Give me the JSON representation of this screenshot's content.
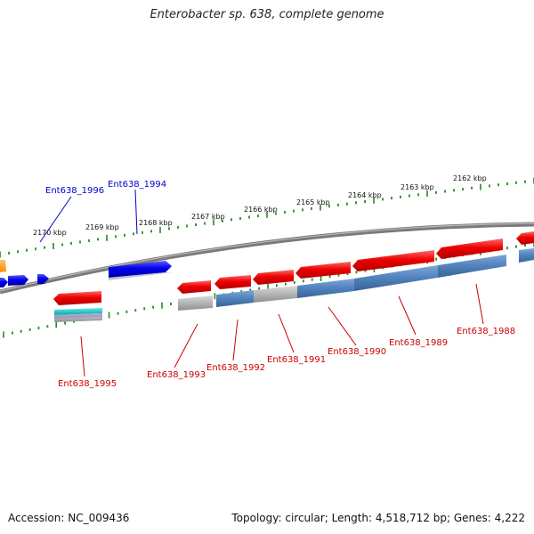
{
  "title": "Enterobacter sp. 638, complete genome",
  "footer": {
    "accession": "Accession: NC_009436",
    "topology": "Topology: circular; Length: 4,518,712 bp; Genes: 4,222"
  },
  "ruler": {
    "labels": [
      "2170 kbp",
      "2169 kbp",
      "2168 kbp",
      "2167 kbp",
      "2166 kbp",
      "2165 kbp",
      "2164 kbp",
      "2163 kbp",
      "2162 kbp"
    ]
  },
  "gene_labels": [
    {
      "id": "Ent638_1996",
      "text": "Ent638_1996",
      "color": "#0000cc"
    },
    {
      "id": "Ent638_1994",
      "text": "Ent638_1994",
      "color": "#0000cc"
    },
    {
      "id": "Ent638_1995",
      "text": "Ent638_1995",
      "color": "#cc0000"
    },
    {
      "id": "Ent638_1993",
      "text": "Ent638_1993",
      "color": "#cc0000"
    },
    {
      "id": "Ent638_1992",
      "text": "Ent638_1992",
      "color": "#cc0000"
    },
    {
      "id": "Ent638_1991",
      "text": "Ent638_1991",
      "color": "#cc0000"
    },
    {
      "id": "Ent638_1990",
      "text": "Ent638_1990",
      "color": "#cc0000"
    },
    {
      "id": "Ent638_1989",
      "text": "Ent638_1989",
      "color": "#cc0000"
    },
    {
      "id": "Ent638_1988",
      "text": "Ent638_1988",
      "color": "#cc0000"
    }
  ],
  "colors": {
    "backbone": "#808080",
    "ruler": "#228b22",
    "forward_gene": "#0000ee",
    "reverse_gene": "#ee0000",
    "feature_steel": "#4f81bd",
    "feature_grey": "#aaaaaa",
    "feature_cyan": "#00c8c8",
    "feature_orange": "#ff9900",
    "label_forward": "#0000cc",
    "label_reverse": "#cc0000"
  }
}
